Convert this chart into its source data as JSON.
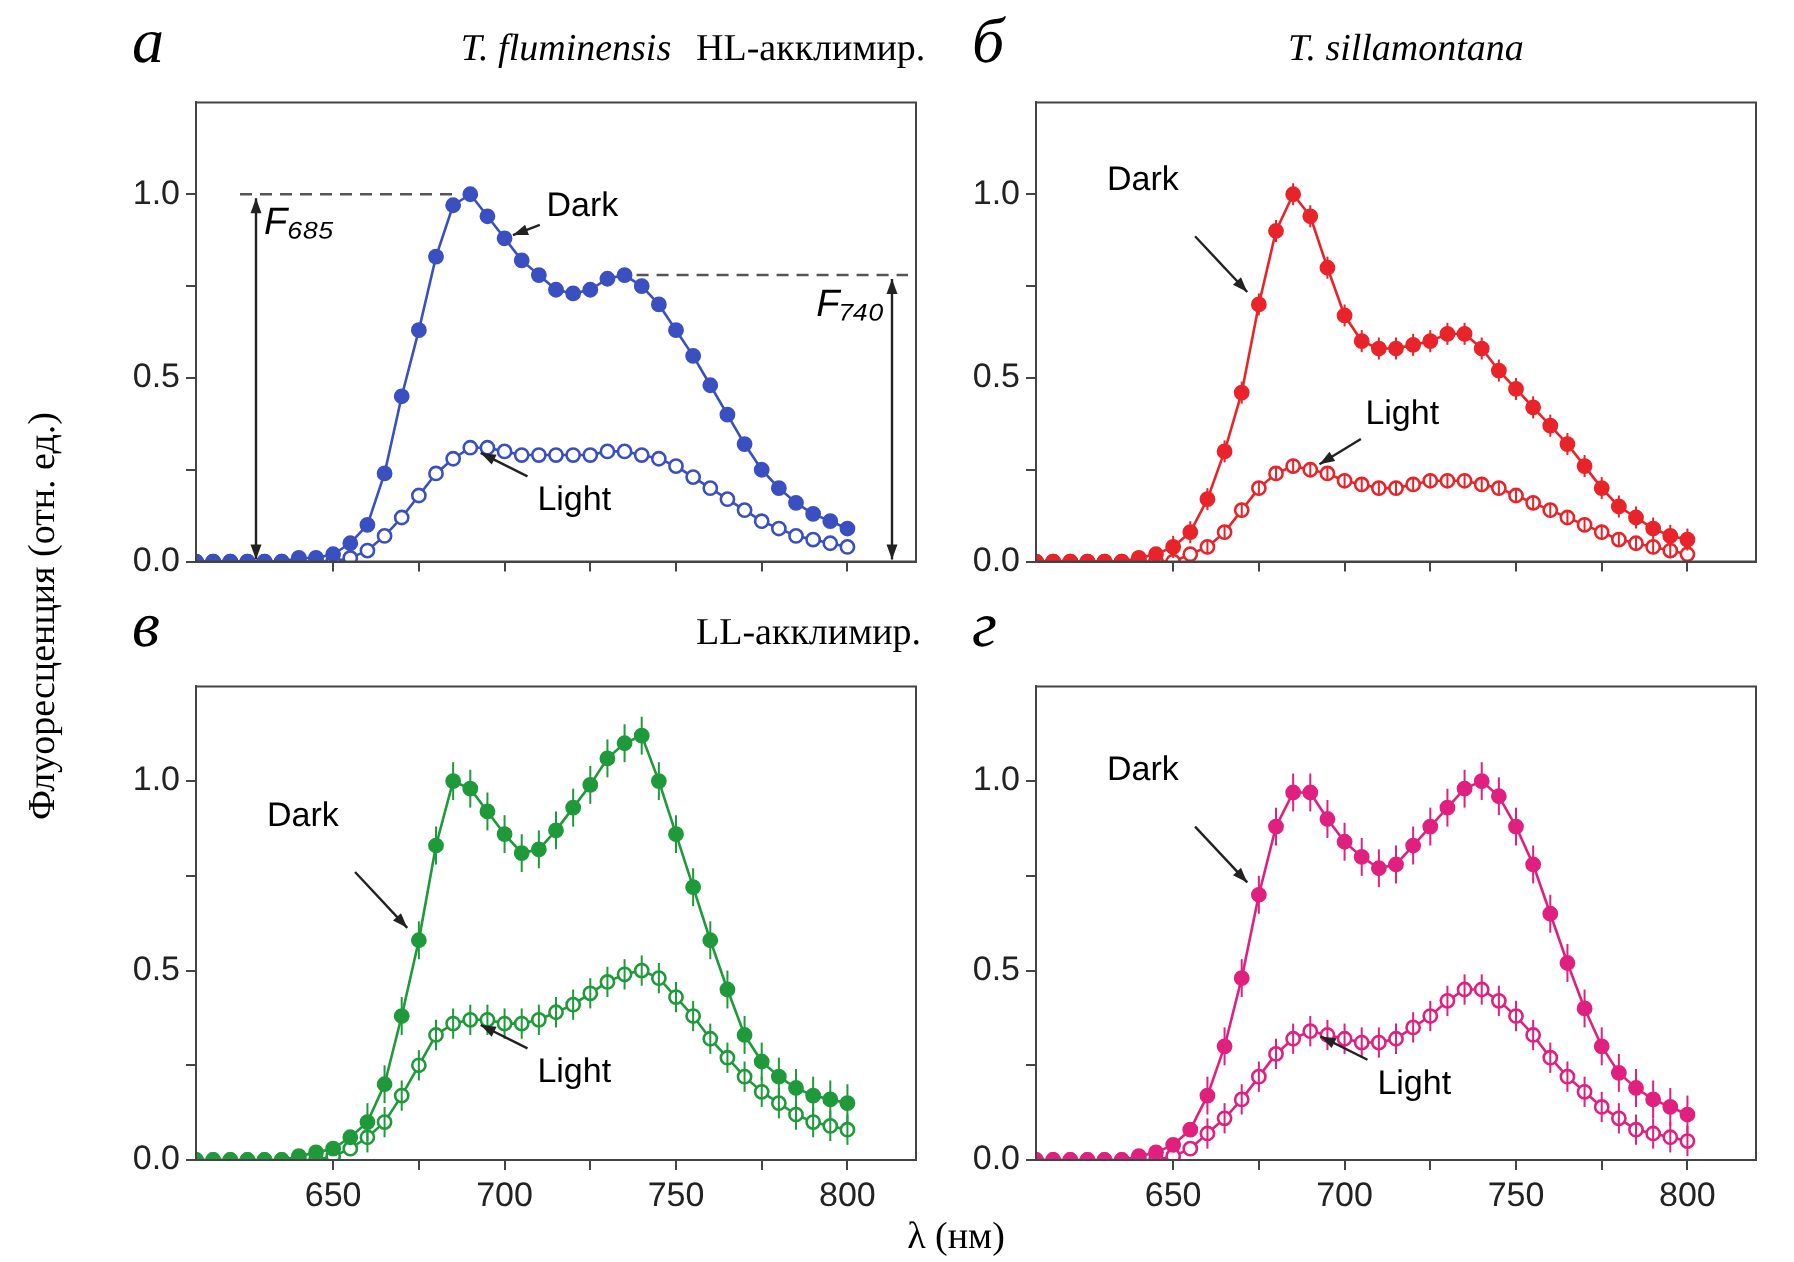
{
  "chart_data": [
    {
      "type": "line",
      "title": "а",
      "subtitle": "T. fluminensis",
      "ylabel": "Флуоресценция (отн. ед.)",
      "marker": "circle",
      "line_style": "solid",
      "tick_labels": "y",
      "xlim": [
        610,
        820
      ],
      "xticks": [
        {
          "value": 650,
          "label": null
        },
        {
          "value": 675,
          "label": null
        },
        {
          "value": 700,
          "label": null
        },
        {
          "value": 725,
          "label": null
        },
        {
          "value": 750,
          "label": null
        },
        {
          "value": 775,
          "label": null
        },
        {
          "value": 800,
          "label": null
        }
      ],
      "ylim": [
        0,
        1.25
      ],
      "yticks": [
        {
          "value": 0,
          "label": "0.0"
        },
        {
          "value": 0.25,
          "label": null
        },
        {
          "value": 0.5,
          "label": "0.5"
        },
        {
          "value": 0.75,
          "label": null
        },
        {
          "value": 1,
          "label": "1.0"
        }
      ],
      "x": [
        610,
        615,
        620,
        625,
        630,
        635,
        640,
        645,
        650,
        655,
        660,
        665,
        670,
        675,
        680,
        685,
        690,
        695,
        700,
        705,
        710,
        715,
        720,
        725,
        730,
        735,
        740,
        745,
        750,
        755,
        760,
        765,
        770,
        775,
        780,
        785,
        790,
        795,
        800
      ],
      "series": [
        {
          "color": "#3a4fc0",
          "values": [
            0,
            0,
            0,
            0,
            0,
            0,
            0.01,
            0.01,
            0.02,
            0.05,
            0.1,
            0.24,
            0.45,
            0.63,
            0.83,
            0.97,
            1.0,
            0.94,
            0.88,
            0.82,
            0.78,
            0.74,
            0.73,
            0.74,
            0.77,
            0.78,
            0.75,
            0.7,
            0.63,
            0.56,
            0.48,
            0.4,
            0.32,
            0.25,
            0.2,
            0.16,
            0.13,
            0.11,
            0.09
          ]
        },
        {
          "color": "#3a4fc0",
          "values": [
            0,
            0,
            0,
            0,
            0,
            0,
            0,
            0,
            0,
            0.01,
            0.03,
            0.07,
            0.12,
            0.18,
            0.24,
            0.28,
            0.31,
            0.31,
            0.3,
            0.29,
            0.29,
            0.29,
            0.29,
            0.29,
            0.3,
            0.3,
            0.29,
            0.28,
            0.26,
            0.23,
            0.2,
            0.17,
            0.14,
            0.11,
            0.09,
            0.07,
            0.06,
            0.05,
            0.04
          ]
        }
      ],
      "ref_lines": [
        {
          "axis": "y",
          "value": 1.0,
          "label": "F₆₈₅",
          "line_style": "dashed"
        },
        {
          "axis": "y",
          "value": 0.78,
          "label": "F₇₄₀",
          "line_style": "dashed"
        }
      ],
      "annotations": [
        {
          "text": "Dark",
          "x": 700,
          "y": 0.88
        },
        {
          "text": "Light",
          "x": 690,
          "y": 0.31
        },
        "HL-акклимир."
      ]
    },
    {
      "type": "line",
      "title": "б",
      "subtitle": "T. sillamontana",
      "marker": "circle",
      "line_style": "solid",
      "tick_labels": "y",
      "xlim": [
        610,
        820
      ],
      "xticks": [
        {
          "value": 650,
          "label": null
        },
        {
          "value": 675,
          "label": null
        },
        {
          "value": 700,
          "label": null
        },
        {
          "value": 725,
          "label": null
        },
        {
          "value": 750,
          "label": null
        },
        {
          "value": 775,
          "label": null
        },
        {
          "value": 800,
          "label": null
        }
      ],
      "ylim": [
        0,
        1.25
      ],
      "yticks": [
        {
          "value": 0,
          "label": "0.0"
        },
        {
          "value": 0.25,
          "label": null
        },
        {
          "value": 0.5,
          "label": "0.5"
        },
        {
          "value": 0.75,
          "label": null
        },
        {
          "value": 1,
          "label": "1.0"
        }
      ],
      "x": [
        610,
        615,
        620,
        625,
        630,
        635,
        640,
        645,
        650,
        655,
        660,
        665,
        670,
        675,
        680,
        685,
        690,
        695,
        700,
        705,
        710,
        715,
        720,
        725,
        730,
        735,
        740,
        745,
        750,
        755,
        760,
        765,
        770,
        775,
        780,
        785,
        790,
        795,
        800
      ],
      "series": [
        {
          "color": "#e8242a",
          "values": [
            0,
            0,
            0,
            0,
            0,
            0,
            0.01,
            0.02,
            0.04,
            0.08,
            0.17,
            0.3,
            0.46,
            0.7,
            0.9,
            1.0,
            0.94,
            0.8,
            0.67,
            0.6,
            0.58,
            0.58,
            0.59,
            0.6,
            0.62,
            0.62,
            0.58,
            0.52,
            0.47,
            0.42,
            0.37,
            0.32,
            0.26,
            0.2,
            0.15,
            0.12,
            0.09,
            0.07,
            0.06
          ],
          "errors": [
            null,
            null,
            null,
            null,
            null,
            null,
            null,
            null,
            0.03,
            0.03,
            0.03,
            0.03,
            0.03,
            0.03,
            0.03,
            0.03,
            0.03,
            0.03,
            0.03,
            0.03,
            0.03,
            0.03,
            0.03,
            0.03,
            0.03,
            0.03,
            0.03,
            0.03,
            0.03,
            0.03,
            0.03,
            0.03,
            0.03,
            0.03,
            0.03,
            0.03,
            0.03,
            0.03,
            0.03
          ]
        },
        {
          "color": "#e8242a",
          "values": [
            0,
            0,
            0,
            0,
            0,
            0,
            0,
            0,
            0,
            0.02,
            0.04,
            0.08,
            0.14,
            0.2,
            0.24,
            0.26,
            0.25,
            0.24,
            0.22,
            0.21,
            0.2,
            0.2,
            0.21,
            0.22,
            0.22,
            0.22,
            0.21,
            0.2,
            0.18,
            0.16,
            0.14,
            0.12,
            0.1,
            0.08,
            0.06,
            0.05,
            0.04,
            0.03,
            0.02
          ],
          "errors": [
            null,
            null,
            null,
            null,
            null,
            null,
            null,
            null,
            null,
            null,
            0.02,
            0.02,
            0.02,
            0.02,
            0.02,
            0.02,
            0.02,
            0.02,
            0.02,
            0.02,
            0.02,
            0.02,
            0.02,
            0.02,
            0.02,
            0.02,
            0.02,
            0.02,
            0.02,
            0.02,
            0.02,
            0.02,
            0.02,
            0.02,
            0.02,
            0.02,
            0.02,
            0.02,
            null
          ]
        }
      ],
      "annotations": [
        {
          "text": "Dark",
          "x": 675,
          "y": 0.7
        },
        {
          "text": "Light",
          "x": 690,
          "y": 0.25
        }
      ]
    },
    {
      "type": "line",
      "title": "в",
      "xlabel": "λ (нм)",
      "marker": "circle",
      "line_style": "solid",
      "xlim": [
        610,
        820
      ],
      "xticks": [
        {
          "value": 650,
          "label": "650"
        },
        {
          "value": 675,
          "label": null
        },
        {
          "value": 700,
          "label": "700"
        },
        {
          "value": 725,
          "label": null
        },
        {
          "value": 750,
          "label": "750"
        },
        {
          "value": 775,
          "label": null
        },
        {
          "value": 800,
          "label": "800"
        }
      ],
      "ylim": [
        0,
        1.25
      ],
      "yticks": [
        {
          "value": 0,
          "label": "0.0"
        },
        {
          "value": 0.25,
          "label": null
        },
        {
          "value": 0.5,
          "label": "0.5"
        },
        {
          "value": 0.75,
          "label": null
        },
        {
          "value": 1,
          "label": "1.0"
        }
      ],
      "x": [
        610,
        615,
        620,
        625,
        630,
        635,
        640,
        645,
        650,
        655,
        660,
        665,
        670,
        675,
        680,
        685,
        690,
        695,
        700,
        705,
        710,
        715,
        720,
        725,
        730,
        735,
        740,
        745,
        750,
        755,
        760,
        765,
        770,
        775,
        780,
        785,
        790,
        795,
        800
      ],
      "series": [
        {
          "color": "#1f9a3a",
          "values": [
            0,
            0,
            0,
            0,
            0,
            0,
            0.01,
            0.02,
            0.03,
            0.06,
            0.1,
            0.2,
            0.38,
            0.58,
            0.83,
            1.0,
            0.98,
            0.92,
            0.86,
            0.81,
            0.82,
            0.87,
            0.93,
            0.99,
            1.06,
            1.1,
            1.12,
            1.0,
            0.86,
            0.72,
            0.58,
            0.45,
            0.33,
            0.26,
            0.22,
            0.19,
            0.17,
            0.16,
            0.15
          ],
          "errors": [
            null,
            null,
            null,
            null,
            null,
            null,
            null,
            null,
            null,
            null,
            0.05,
            0.05,
            0.05,
            0.05,
            0.05,
            0.05,
            0.05,
            0.05,
            0.05,
            0.05,
            0.05,
            0.05,
            0.05,
            0.05,
            0.05,
            0.05,
            0.05,
            0.05,
            0.05,
            0.05,
            0.05,
            0.05,
            0.05,
            0.05,
            0.05,
            0.05,
            0.05,
            0.05,
            0.05
          ]
        },
        {
          "color": "#1f9a3a",
          "values": [
            0,
            0,
            0,
            0,
            0,
            0,
            0,
            0,
            0.01,
            0.03,
            0.06,
            0.1,
            0.17,
            0.25,
            0.33,
            0.36,
            0.37,
            0.37,
            0.36,
            0.36,
            0.37,
            0.39,
            0.41,
            0.44,
            0.47,
            0.49,
            0.5,
            0.48,
            0.43,
            0.38,
            0.32,
            0.27,
            0.22,
            0.18,
            0.15,
            0.12,
            0.1,
            0.09,
            0.08
          ],
          "errors": [
            null,
            null,
            null,
            null,
            null,
            null,
            null,
            null,
            null,
            null,
            0.04,
            0.04,
            0.04,
            0.04,
            0.04,
            0.04,
            0.04,
            0.04,
            0.04,
            0.04,
            0.04,
            0.04,
            0.04,
            0.04,
            0.04,
            0.04,
            0.04,
            0.04,
            0.04,
            0.04,
            0.04,
            0.04,
            0.04,
            0.04,
            0.04,
            0.04,
            0.04,
            0.04,
            0.04
          ]
        }
      ],
      "annotations": [
        {
          "text": "Dark",
          "x": 675,
          "y": 0.58
        },
        {
          "text": "Light",
          "x": 690,
          "y": 0.37
        },
        "LL-акклимир."
      ]
    },
    {
      "type": "line",
      "title": "г",
      "marker": "circle",
      "line_style": "solid",
      "xlim": [
        610,
        820
      ],
      "xticks": [
        {
          "value": 650,
          "label": "650"
        },
        {
          "value": 675,
          "label": null
        },
        {
          "value": 700,
          "label": "700"
        },
        {
          "value": 725,
          "label": null
        },
        {
          "value": 750,
          "label": "750"
        },
        {
          "value": 775,
          "label": null
        },
        {
          "value": 800,
          "label": "800"
        }
      ],
      "ylim": [
        0,
        1.25
      ],
      "yticks": [
        {
          "value": 0,
          "label": "0.0"
        },
        {
          "value": 0.25,
          "label": null
        },
        {
          "value": 0.5,
          "label": "0.5"
        },
        {
          "value": 0.75,
          "label": null
        },
        {
          "value": 1,
          "label": "1.0"
        }
      ],
      "x": [
        610,
        615,
        620,
        625,
        630,
        635,
        640,
        645,
        650,
        655,
        660,
        665,
        670,
        675,
        680,
        685,
        690,
        695,
        700,
        705,
        710,
        715,
        720,
        725,
        730,
        735,
        740,
        745,
        750,
        755,
        760,
        765,
        770,
        775,
        780,
        785,
        790,
        795,
        800
      ],
      "series": [
        {
          "color": "#e0207f",
          "values": [
            0,
            0,
            0,
            0,
            0,
            0,
            0.01,
            0.02,
            0.04,
            0.08,
            0.17,
            0.3,
            0.48,
            0.7,
            0.88,
            0.97,
            0.97,
            0.9,
            0.84,
            0.8,
            0.77,
            0.78,
            0.83,
            0.88,
            0.93,
            0.98,
            1.0,
            0.96,
            0.88,
            0.78,
            0.65,
            0.52,
            0.4,
            0.3,
            0.23,
            0.19,
            0.16,
            0.14,
            0.12
          ],
          "errors": [
            null,
            null,
            null,
            null,
            null,
            null,
            null,
            null,
            null,
            null,
            0.05,
            0.05,
            0.05,
            0.05,
            0.05,
            0.05,
            0.05,
            0.05,
            0.05,
            0.05,
            0.05,
            0.05,
            0.05,
            0.05,
            0.05,
            0.05,
            0.05,
            0.05,
            0.05,
            0.05,
            0.05,
            0.05,
            0.05,
            0.05,
            0.05,
            0.05,
            0.05,
            0.05,
            0.05
          ]
        },
        {
          "color": "#e0207f",
          "values": [
            0,
            0,
            0,
            0,
            0,
            0,
            0,
            0,
            0.01,
            0.03,
            0.07,
            0.11,
            0.16,
            0.22,
            0.28,
            0.32,
            0.34,
            0.33,
            0.32,
            0.31,
            0.31,
            0.32,
            0.35,
            0.38,
            0.42,
            0.45,
            0.45,
            0.42,
            0.38,
            0.33,
            0.27,
            0.22,
            0.18,
            0.14,
            0.11,
            0.08,
            0.07,
            0.06,
            0.05
          ],
          "errors": [
            null,
            null,
            null,
            null,
            null,
            null,
            null,
            null,
            null,
            null,
            0.04,
            0.04,
            0.04,
            0.04,
            0.04,
            0.04,
            0.04,
            0.04,
            0.04,
            0.04,
            0.04,
            0.04,
            0.04,
            0.04,
            0.04,
            0.04,
            0.04,
            0.04,
            0.04,
            0.04,
            0.04,
            0.04,
            0.04,
            0.04,
            0.04,
            0.04,
            0.04,
            0.04,
            0.04
          ]
        }
      ],
      "annotations": [
        {
          "text": "Dark",
          "x": 675,
          "y": 0.7
        },
        {
          "text": "Light",
          "x": 690,
          "y": 0.34
        }
      ]
    }
  ]
}
